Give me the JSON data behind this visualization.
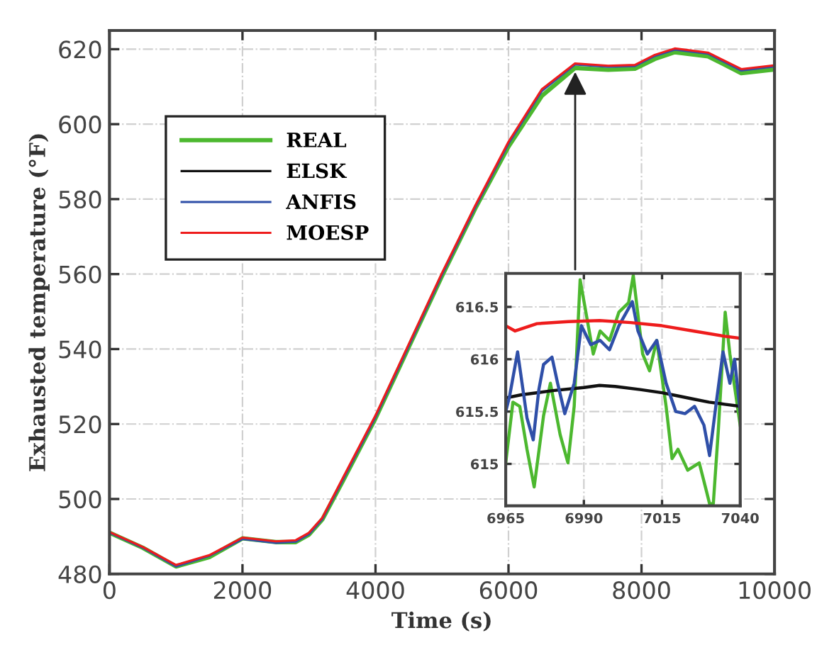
{
  "chart_data": [
    {
      "type": "line",
      "xlabel": "Time (s)",
      "ylabel": "Exhausted temperature (°F)",
      "x": [
        0,
        500,
        1000,
        1500,
        2000,
        2500,
        2800,
        3000,
        3200,
        3500,
        4000,
        4500,
        5000,
        5500,
        6000,
        6500,
        7000,
        7500,
        7900,
        8200,
        8500,
        9000,
        9500,
        10000
      ],
      "series": [
        {
          "name": "REAL",
          "color": "#4cb82f",
          "values": [
            491,
            487,
            482,
            484.5,
            489.5,
            488.5,
            488.5,
            490.5,
            494.5,
            504.5,
            521.5,
            540.5,
            559.5,
            577.5,
            594,
            607.5,
            615,
            614.5,
            614.8,
            617.4,
            619.2,
            618.1,
            613.6,
            614.6
          ]
        },
        {
          "name": "ELSK",
          "color": "#111111",
          "values": [
            null,
            null,
            null,
            null,
            null,
            null,
            null,
            null,
            null,
            null,
            null,
            null,
            null,
            null,
            null,
            null,
            null,
            null,
            null,
            null,
            null,
            null,
            null,
            null
          ]
        },
        {
          "name": "ANFIS",
          "color": "#2f4fa8",
          "values": [
            491,
            487,
            482,
            484.8,
            489.3,
            488.3,
            488.6,
            490.6,
            494.6,
            504.8,
            521.8,
            540.8,
            559.8,
            577.8,
            594.8,
            608.8,
            615.9,
            615.3,
            615.5,
            618.2,
            619.9,
            618.8,
            614.3,
            615.4
          ]
        },
        {
          "name": "MOESP",
          "color": "#ee1c1c",
          "values": [
            491.2,
            487.2,
            482.4,
            485,
            489.7,
            488.7,
            489,
            491,
            495,
            505.3,
            522.3,
            541.3,
            560.3,
            578.3,
            595.3,
            609.3,
            616.2,
            615.6,
            615.8,
            618.5,
            620.2,
            619.1,
            614.7,
            615.7
          ]
        }
      ],
      "xlim": [
        0,
        10000
      ],
      "xticks": [
        0,
        2000,
        4000,
        6000,
        8000,
        10000
      ],
      "ylim": [
        480,
        625
      ],
      "yticks": [
        480,
        500,
        520,
        540,
        560,
        580,
        600,
        620
      ],
      "grid": true,
      "legend": "top left",
      "line_style": "solid",
      "marker": "none"
    },
    {
      "type": "line",
      "series": [
        {
          "color": "#4cb82f",
          "x": [
            6965,
            6967.3,
            6969.5,
            6971.8,
            6974.1,
            6977.1,
            6979.3,
            6982.4,
            6984.9,
            6986.9,
            6988.8,
            6993,
            6995.2,
            6998.2,
            7001.2,
            7004.3,
            7005.8,
            7008.8,
            7011,
            7013.3,
            7016.3,
            7018.2,
            7020.1,
            7023.2,
            7026.9,
            7029.2,
            7030.2,
            7031.4,
            7033,
            7035.2,
            7036.7,
            7040
          ],
          "values": [
            615.01,
            615.59,
            615.55,
            615.14,
            614.78,
            615.46,
            615.77,
            615.28,
            615.01,
            615.55,
            616.76,
            616.05,
            616.27,
            616.18,
            616.45,
            616.54,
            616.8,
            616.05,
            615.89,
            616.18,
            615.55,
            615.05,
            615.14,
            614.94,
            615.01,
            614.74,
            614.62,
            614.62,
            615.32,
            616.45,
            616.05,
            615.37
          ]
        },
        {
          "color": "#111111",
          "x": [
            6965,
            6970,
            6980,
            6990,
            6995,
            7000,
            7008,
            7015,
            7020,
            7025,
            7030,
            7035,
            7040
          ],
          "values": [
            615.63,
            615.66,
            615.7,
            615.73,
            615.75,
            615.74,
            615.71,
            615.68,
            615.65,
            615.62,
            615.59,
            615.57,
            615.55
          ]
        },
        {
          "color": "#2f4fa8",
          "x": [
            6965,
            6966.2,
            6968.8,
            6971.8,
            6973.8,
            6975.6,
            6977.1,
            6979.8,
            6981.6,
            6983.9,
            6986.9,
            6989.2,
            6992.2,
            6995.2,
            6998.2,
            7001.2,
            7005.5,
            7007.3,
            7010.3,
            7013.3,
            7016.3,
            7019.4,
            7022.4,
            7025.4,
            7028.4,
            7030.2,
            7032.2,
            7034.5,
            7036.7,
            7038.2,
            7040
          ],
          "values": [
            615.5,
            615.64,
            616.07,
            615.44,
            615.23,
            615.71,
            615.95,
            616.02,
            615.77,
            615.48,
            615.77,
            616.32,
            616.14,
            616.18,
            616.09,
            616.32,
            616.55,
            616.27,
            616.05,
            616.18,
            615.77,
            615.5,
            615.48,
            615.55,
            615.37,
            615.08,
            615.55,
            616.07,
            615.77,
            616,
            615.5
          ]
        },
        {
          "color": "#ee1c1c",
          "x": [
            6965,
            6968,
            6975,
            6985,
            6995,
            7005,
            7015,
            7025,
            7035,
            7040
          ],
          "values": [
            616.32,
            616.27,
            616.34,
            616.36,
            616.37,
            616.35,
            616.32,
            616.27,
            616.22,
            616.2
          ]
        }
      ],
      "xlim": [
        6965,
        7040
      ],
      "xticks": [
        6965,
        6990,
        7015,
        7040
      ],
      "ylim": [
        614.6,
        616.82
      ],
      "yticks": [
        615,
        615.5,
        616,
        616.5
      ],
      "grid": true,
      "line_style": "solid",
      "marker": "none"
    }
  ]
}
